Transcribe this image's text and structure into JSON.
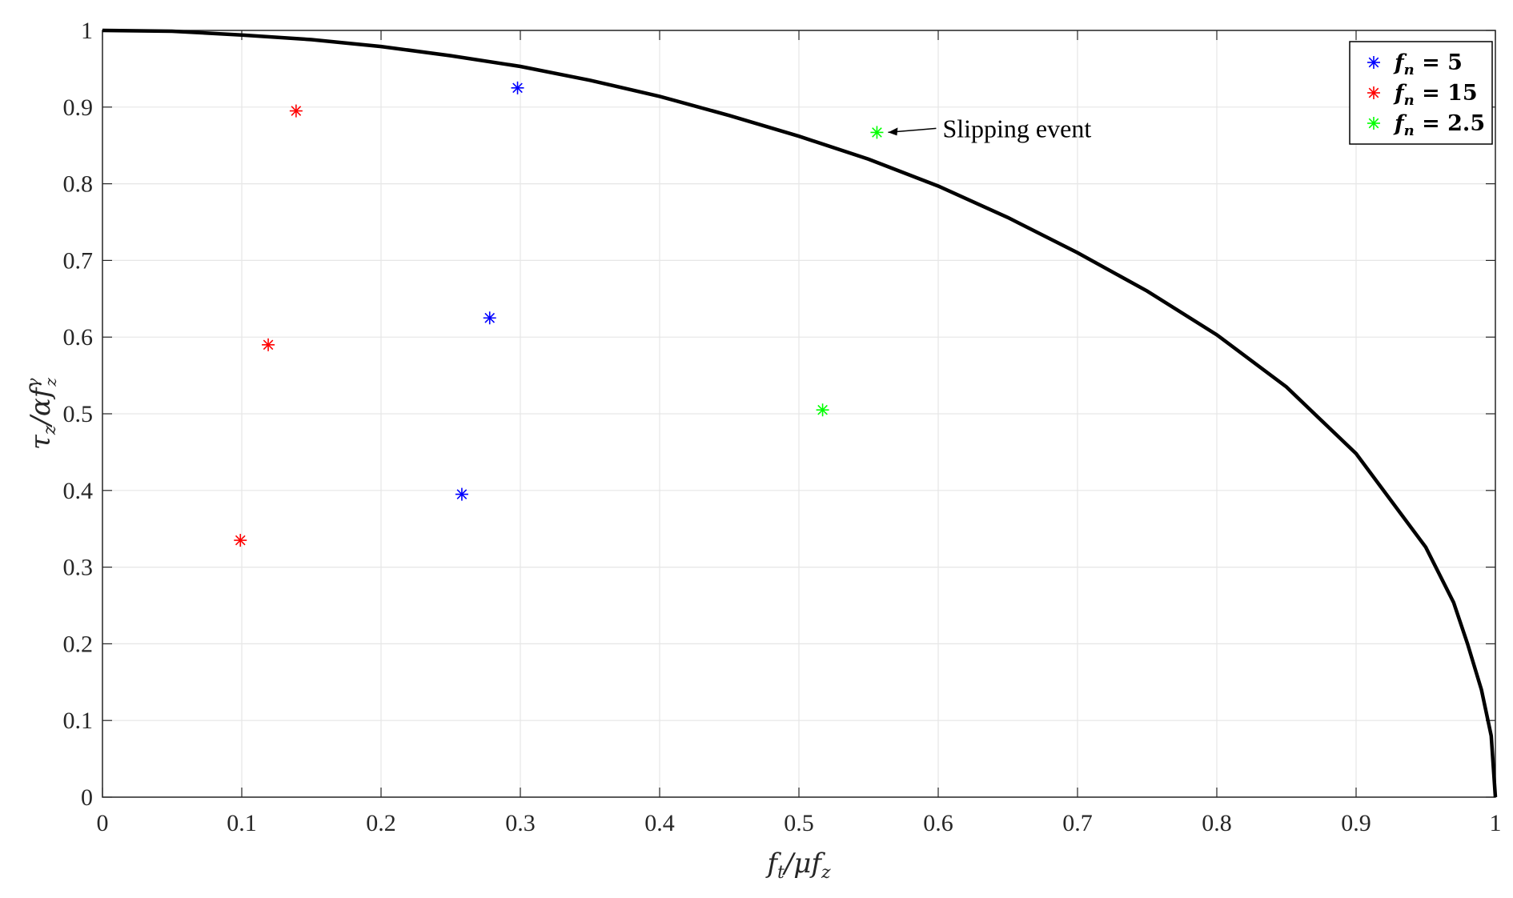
{
  "chart_data": {
    "type": "scatter",
    "xlabel": "f_t/μf_z",
    "ylabel": "τ_z/αf_z^γ",
    "xlim": [
      0,
      1
    ],
    "ylim": [
      0,
      1
    ],
    "xticks": [
      "0",
      "0.1",
      "0.2",
      "0.3",
      "0.4",
      "0.5",
      "0.6",
      "0.7",
      "0.8",
      "0.9",
      "1"
    ],
    "yticks": [
      "0",
      "0.1",
      "0.2",
      "0.3",
      "0.4",
      "0.5",
      "0.6",
      "0.7",
      "0.8",
      "0.9",
      "1"
    ],
    "grid": true,
    "legend_position": "top-right",
    "boundary_curve": {
      "color": "#000000",
      "points": [
        [
          0,
          1
        ],
        [
          0.05,
          0.999
        ],
        [
          0.1,
          0.994
        ],
        [
          0.15,
          0.988
        ],
        [
          0.2,
          0.979
        ],
        [
          0.25,
          0.967
        ],
        [
          0.3,
          0.953
        ],
        [
          0.35,
          0.935
        ],
        [
          0.4,
          0.914
        ],
        [
          0.45,
          0.889
        ],
        [
          0.5,
          0.862
        ],
        [
          0.55,
          0.832
        ],
        [
          0.6,
          0.797
        ],
        [
          0.65,
          0.756
        ],
        [
          0.7,
          0.71
        ],
        [
          0.75,
          0.66
        ],
        [
          0.8,
          0.603
        ],
        [
          0.85,
          0.535
        ],
        [
          0.9,
          0.448
        ],
        [
          0.95,
          0.326
        ],
        [
          0.97,
          0.254
        ],
        [
          0.98,
          0.2
        ],
        [
          0.99,
          0.14
        ],
        [
          0.997,
          0.08
        ],
        [
          1.0,
          0
        ]
      ]
    },
    "series": [
      {
        "name": "f_n = 5",
        "color": "#0000ff",
        "marker": "*",
        "points": [
          [
            0.258,
            0.395
          ],
          [
            0.278,
            0.625
          ],
          [
            0.298,
            0.925
          ]
        ]
      },
      {
        "name": "f_n = 15",
        "color": "#ff0000",
        "marker": "*",
        "points": [
          [
            0.099,
            0.335
          ],
          [
            0.119,
            0.59
          ],
          [
            0.139,
            0.895
          ]
        ]
      },
      {
        "name": "f_n = 2.5",
        "color": "#00ff00",
        "marker": "*",
        "points": [
          [
            0.517,
            0.505
          ],
          [
            0.556,
            0.867
          ]
        ]
      }
    ],
    "annotations": [
      {
        "text": "Slipping event",
        "target": [
          0.556,
          0.867
        ]
      }
    ]
  },
  "legend_entries": [
    {
      "label_var": "f",
      "label_sub": "n",
      "label_rest": " = 5",
      "color": "#0000ff"
    },
    {
      "label_var": "f",
      "label_sub": "n",
      "label_rest": " = 15",
      "color": "#ff0000"
    },
    {
      "label_var": "f",
      "label_sub": "n",
      "label_rest": " = 2.5",
      "color": "#00ff00"
    }
  ],
  "annotation_text": "Slipping event"
}
